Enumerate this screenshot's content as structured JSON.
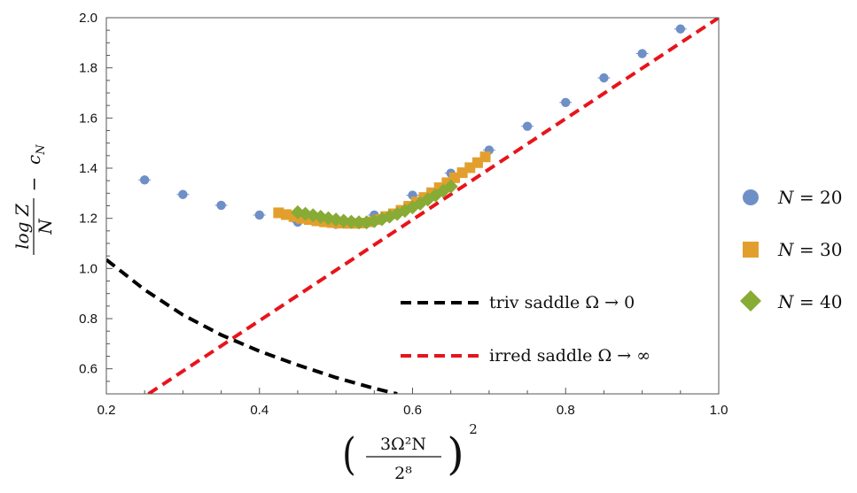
{
  "chart_data": {
    "type": "scatter",
    "title": "",
    "xlabel": {
      "open": "(",
      "num": "3Ω²N",
      "den": "2⁸",
      "close": ")",
      "power": "2"
    },
    "ylabel": {
      "num": "log Z",
      "den": "N",
      "minus": "−",
      "sub_c": "c",
      "sub_n": "N"
    },
    "xlim": [
      0.2,
      1.0
    ],
    "ylim": [
      0.5,
      2.0
    ],
    "x_ticks": [
      0.2,
      0.4,
      0.6,
      0.8,
      1.0
    ],
    "x_tick_labels": [
      "0.2",
      "0.4",
      "0.6",
      "0.8",
      "1.0"
    ],
    "y_ticks": [
      0.6,
      0.8,
      1.0,
      1.2,
      1.4,
      1.6,
      1.8,
      2.0
    ],
    "y_tick_labels": [
      "0.6",
      "0.8",
      "1.0",
      "1.2",
      "1.4",
      "1.6",
      "1.8",
      "2.0"
    ],
    "grid": false,
    "legend_placement": "right",
    "series": [
      {
        "name": "N = 20",
        "label_var": "N",
        "label_eq": " = 20",
        "marker": "circle",
        "color": "#6f8fc7",
        "x": [
          0.25,
          0.3,
          0.35,
          0.4,
          0.45,
          0.5,
          0.55,
          0.6,
          0.65,
          0.7,
          0.75,
          0.8,
          0.85,
          0.9,
          0.95
        ],
        "y": [
          1.353,
          1.295,
          1.252,
          1.213,
          1.185,
          1.176,
          1.213,
          1.292,
          1.38,
          1.472,
          1.567,
          1.662,
          1.76,
          1.857,
          1.955
        ]
      },
      {
        "name": "N = 30",
        "label_var": "N",
        "label_eq": " = 30",
        "marker": "square",
        "color": "#e39f2d",
        "x": [
          0.425,
          0.435,
          0.445,
          0.455,
          0.465,
          0.475,
          0.485,
          0.495,
          0.505,
          0.515,
          0.525,
          0.535,
          0.545,
          0.555,
          0.565,
          0.575,
          0.585,
          0.595,
          0.605,
          0.615,
          0.625,
          0.635,
          0.645,
          0.655,
          0.665,
          0.675,
          0.685,
          0.695
        ],
        "y": [
          1.222,
          1.215,
          1.207,
          1.2,
          1.195,
          1.19,
          1.186,
          1.183,
          1.181,
          1.18,
          1.18,
          1.181,
          1.186,
          1.195,
          1.207,
          1.218,
          1.232,
          1.248,
          1.265,
          1.283,
          1.302,
          1.322,
          1.342,
          1.362,
          1.382,
          1.402,
          1.422,
          1.445
        ]
      },
      {
        "name": "N = 40",
        "label_var": "N",
        "label_eq": " = 40",
        "marker": "diamond",
        "color": "#88ab35",
        "x": [
          0.45,
          0.46,
          0.47,
          0.48,
          0.49,
          0.5,
          0.51,
          0.52,
          0.53,
          0.54,
          0.55,
          0.56,
          0.57,
          0.58,
          0.59,
          0.6,
          0.61,
          0.62,
          0.63,
          0.64,
          0.65
        ],
        "y": [
          1.224,
          1.218,
          1.212,
          1.206,
          1.2,
          1.195,
          1.19,
          1.186,
          1.184,
          1.184,
          1.189,
          1.197,
          1.207,
          1.218,
          1.23,
          1.244,
          1.259,
          1.275,
          1.292,
          1.309,
          1.327
        ]
      }
    ],
    "curves": [
      {
        "name": "triv saddle",
        "label_text": "triv saddle Ω → 0",
        "style": "dashed",
        "color": "#000000",
        "x": [
          0.2,
          0.25,
          0.3,
          0.35,
          0.4,
          0.45,
          0.5,
          0.55,
          0.58
        ],
        "y": [
          1.035,
          0.915,
          0.815,
          0.735,
          0.67,
          0.615,
          0.565,
          0.522,
          0.5
        ]
      },
      {
        "name": "irred saddle",
        "label_text": "irred saddle Ω → ∞",
        "style": "dashed",
        "color": "#e8141b",
        "x": [
          0.255,
          1.0
        ],
        "y": [
          0.5,
          2.0
        ]
      }
    ]
  }
}
